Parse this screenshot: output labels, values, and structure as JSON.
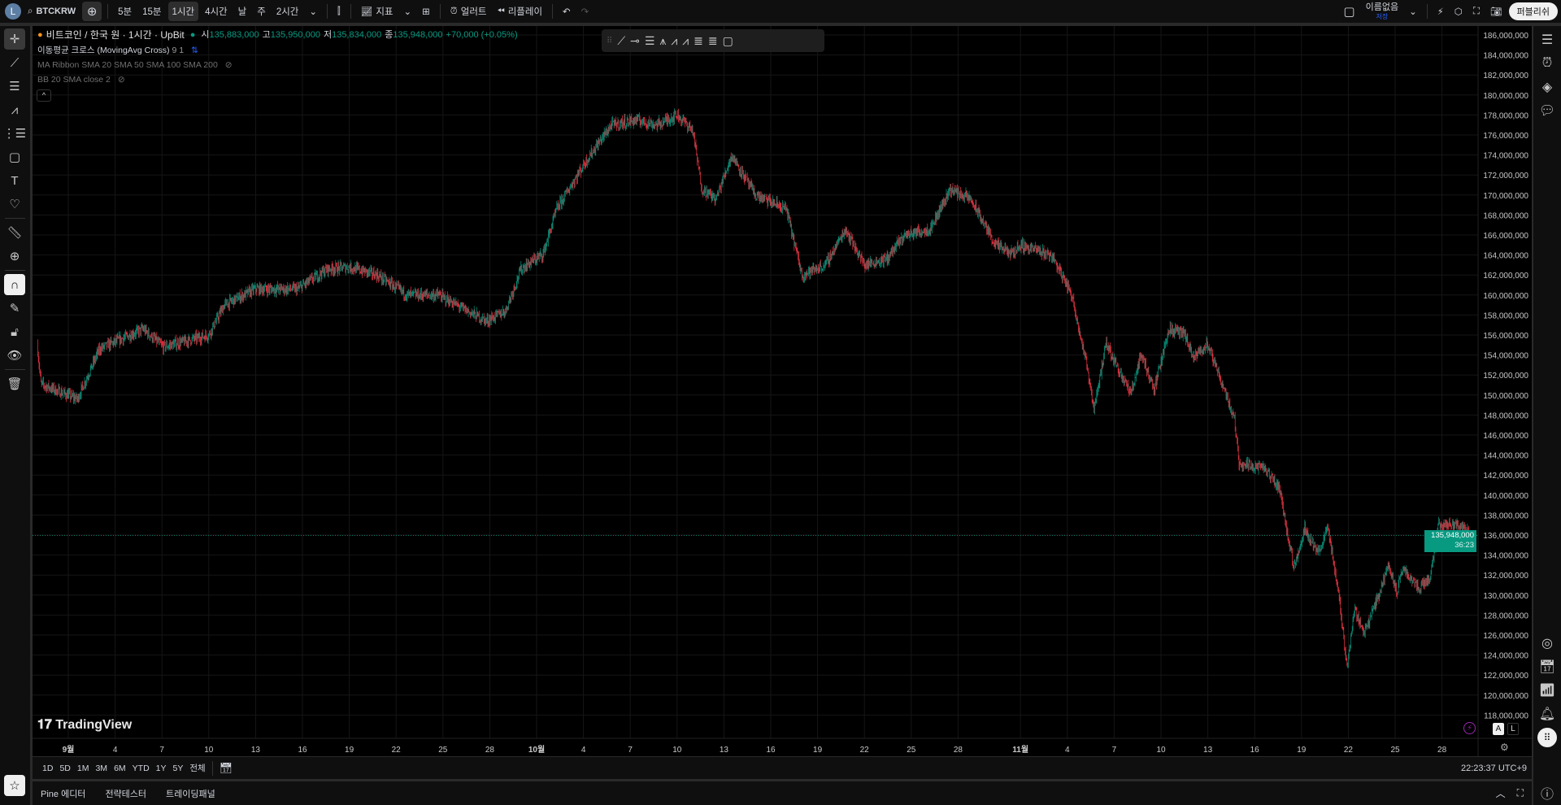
{
  "topbar": {
    "avatar_letter": "L",
    "symbol": "BTCKRW",
    "intervals": [
      "5분",
      "15분",
      "1시간",
      "4시간",
      "날",
      "주",
      "2시간"
    ],
    "active_interval": "1시간",
    "indicators_label": "지표",
    "alert_label": "얼러트",
    "replay_label": "리플레이",
    "layout_name": "이름없음",
    "layout_status": "저장",
    "publish_label": "퍼블리쉬"
  },
  "legend": {
    "title": "비트코인 / 한국 원 · 1시간 · UpBit",
    "open_label": "시",
    "open": "135,883,000",
    "high_label": "고",
    "high": "135,950,000",
    "low_label": "저",
    "low": "135,834,000",
    "close_label": "종",
    "close": "135,948,000",
    "change": "+70,000 (+0.05%)",
    "indicators": [
      {
        "name": "이동평균 크로스 (MovingAvg Cross)",
        "params": "9 1"
      },
      {
        "name": "MA Ribbon SMA 20 SMA 50 SMA 100 SMA 200",
        "params": ""
      },
      {
        "name": "BB 20 SMA close 2",
        "params": ""
      }
    ]
  },
  "colors": {
    "up": "#089981",
    "down": "#f23645",
    "background": "#000000",
    "price_label": "#089981"
  },
  "left_tools": [
    "crosshair-icon",
    "trend-line-icon",
    "fib-icon",
    "pattern-icon",
    "projection-icon",
    "rectangle-icon",
    "text-icon",
    "heart-icon",
    "ruler-icon",
    "zoom-in-icon",
    "magnet-icon",
    "lock-pencil-icon",
    "lock-icon",
    "eye-icon",
    "trash-icon"
  ],
  "drawing_toolbar": [
    "trend-line-icon",
    "horizontal-ray-icon",
    "parallel-channel-icon",
    "pitchfork-icon",
    "abcd-pattern-icon",
    "xabcd-pattern-icon",
    "fib-retracement-icon",
    "fib-channel-icon",
    "rectangle-icon"
  ],
  "right_tools": [
    "watchlist-icon",
    "alarm-icon",
    "layers-icon",
    "chat-icon",
    "target-icon",
    "calendar-icon",
    "news-feed-icon",
    "notifications-icon",
    "apps-icon",
    "help-icon"
  ],
  "chart_data": {
    "type": "candlestick",
    "interval": "1시간",
    "y_ticks": [
      "186,000,000",
      "184,000,000",
      "182,000,000",
      "180,000,000",
      "178,000,000",
      "176,000,000",
      "174,000,000",
      "172,000,000",
      "170,000,000",
      "168,000,000",
      "166,000,000",
      "164,000,000",
      "162,000,000",
      "160,000,000",
      "158,000,000",
      "156,000,000",
      "154,000,000",
      "152,000,000",
      "150,000,000",
      "148,000,000",
      "146,000,000",
      "144,000,000",
      "142,000,000",
      "140,000,000",
      "138,000,000",
      "136,000,000",
      "134,000,000",
      "132,000,000",
      "130,000,000",
      "128,000,000",
      "126,000,000",
      "124,000,000",
      "122,000,000",
      "120,000,000",
      "118,000,000"
    ],
    "ylim": [
      117000000,
      187000000
    ],
    "x_ticks": [
      "9월",
      "4",
      "7",
      "10",
      "13",
      "16",
      "19",
      "22",
      "25",
      "28",
      "10월",
      "4",
      "7",
      "10",
      "13",
      "16",
      "19",
      "22",
      "25",
      "28",
      "11월",
      "4",
      "7",
      "10",
      "13",
      "16",
      "19",
      "22",
      "25",
      "28"
    ],
    "grid": true,
    "last_price": "135,948,000",
    "countdown": "36:23",
    "price_path": [
      [
        "08-30 00:00",
        155100000
      ],
      [
        "08-30 06:00",
        151100000
      ],
      [
        "09-01 14:00",
        149600000
      ],
      [
        "09-03 00:00",
        154600000
      ],
      [
        "09-05 19:00",
        156600000
      ],
      [
        "09-07 02:00",
        154800000
      ],
      [
        "09-10 00:00",
        156000000
      ],
      [
        "09-11 00:00",
        159000000
      ],
      [
        "09-13 00:00",
        160600000
      ],
      [
        "09-15 17:00",
        160600000
      ],
      [
        "09-17 14:00",
        162600000
      ],
      [
        "09-19 00:00",
        162800000
      ],
      [
        "09-20 19:00",
        162000000
      ],
      [
        "09-22 17:00",
        160000000
      ],
      [
        "09-24 17:00",
        160000000
      ],
      [
        "09-26 14:00",
        158400000
      ],
      [
        "09-27 19:00",
        157400000
      ],
      [
        "09-29 00:00",
        158400000
      ],
      [
        "09-30 00:00",
        162600000
      ],
      [
        "10-01 10:00",
        164100000
      ],
      [
        "10-02 07:00",
        168600000
      ],
      [
        "10-04 05:00",
        173500000
      ],
      [
        "10-05 19:00",
        177000000
      ],
      [
        "10-07 10:00",
        177500000
      ],
      [
        "10-08 17:00",
        177000000
      ],
      [
        "10-10 00:00",
        178000000
      ],
      [
        "10-11 00:00",
        176500000
      ],
      [
        "10-11 14:00",
        170600000
      ],
      [
        "10-12 12:00",
        169600000
      ],
      [
        "10-13 12:00",
        174000000
      ],
      [
        "10-15 00:00",
        170000000
      ],
      [
        "10-17 00:00",
        168600000
      ],
      [
        "10-18 00:00",
        162000000
      ],
      [
        "10-19 12:00",
        163000000
      ],
      [
        "10-20 19:00",
        166600000
      ],
      [
        "10-22 00:00",
        163000000
      ],
      [
        "10-23 10:00",
        163600000
      ],
      [
        "10-24 14:00",
        166000000
      ],
      [
        "10-26 05:00",
        166600000
      ],
      [
        "10-27 12:00",
        170600000
      ],
      [
        "10-28 19:00",
        169600000
      ],
      [
        "10-30 10:00",
        165000000
      ],
      [
        "10-31 10:00",
        164100000
      ],
      [
        "11-01 00:00",
        165000000
      ],
      [
        "11-03 00:00",
        164000000
      ],
      [
        "11-04 07:00",
        160000000
      ],
      [
        "11-05 07:00",
        152600000
      ],
      [
        "11-05 17:00",
        148700000
      ],
      [
        "11-06 12:00",
        155100000
      ],
      [
        "11-08 02:00",
        150100000
      ],
      [
        "11-08 17:00",
        154100000
      ],
      [
        "11-09 14:00",
        150600000
      ],
      [
        "11-10 12:00",
        156600000
      ],
      [
        "11-11 12:00",
        156100000
      ],
      [
        "11-12 02:00",
        153600000
      ],
      [
        "11-12 22:00",
        155100000
      ],
      [
        "11-13 17:00",
        152100000
      ],
      [
        "11-14 17:00",
        147600000
      ],
      [
        "11-15 00:00",
        143200000
      ],
      [
        "11-16 14:00",
        142700000
      ],
      [
        "11-17 14:00",
        140700000
      ],
      [
        "11-18 12:00",
        132700000
      ],
      [
        "11-19 05:00",
        136700000
      ],
      [
        "11-20 02:00",
        134200000
      ],
      [
        "11-20 17:00",
        136700000
      ],
      [
        "11-21 10:00",
        129700000
      ],
      [
        "11-21 22:00",
        122800000
      ],
      [
        "11-22 10:00",
        128700000
      ],
      [
        "11-23 00:00",
        126200000
      ],
      [
        "11-24 00:00",
        130200000
      ],
      [
        "11-24 14:00",
        133200000
      ],
      [
        "11-25 02:00",
        130200000
      ],
      [
        "11-25 12:00",
        132700000
      ],
      [
        "11-26 12:00",
        130700000
      ],
      [
        "11-27 05:00",
        131700000
      ],
      [
        "11-27 19:00",
        137000000
      ],
      [
        "11-29 00:00",
        137000000
      ],
      [
        "11-29 22:00",
        135948000
      ]
    ]
  },
  "range_bar": {
    "ranges": [
      "1D",
      "5D",
      "1M",
      "3M",
      "6M",
      "YTD",
      "1Y",
      "5Y",
      "전체"
    ],
    "clock": "22:23:37 UTC+9"
  },
  "axis_controls": {
    "auto": "A",
    "log": "L"
  },
  "watermark": "TradingView",
  "bottom_tabs": [
    "Pine 에디터",
    "전략테스터",
    "트레이딩패널"
  ]
}
